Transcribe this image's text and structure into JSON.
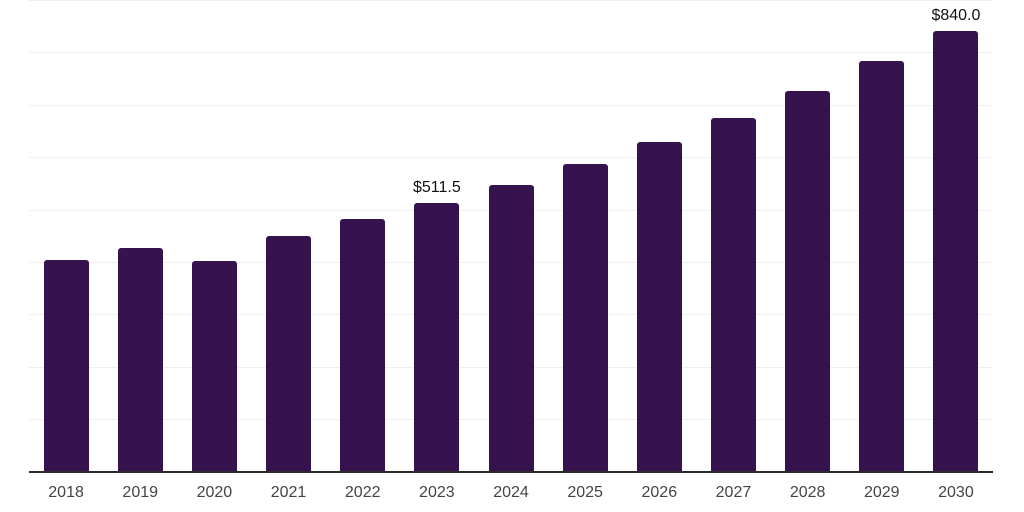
{
  "chart_data": {
    "type": "bar",
    "title": "",
    "xlabel": "",
    "ylabel": "",
    "categories": [
      "2018",
      "2019",
      "2020",
      "2021",
      "2022",
      "2023",
      "2024",
      "2025",
      "2026",
      "2027",
      "2028",
      "2029",
      "2030"
    ],
    "values": [
      403,
      425.5,
      401,
      449.5,
      481.5,
      511.5,
      546.5,
      586,
      627.5,
      673.5,
      725.5,
      783,
      840
    ],
    "data_labels": [
      null,
      null,
      null,
      null,
      null,
      "$511.5",
      null,
      null,
      null,
      null,
      null,
      null,
      "$840.0"
    ],
    "ylim": [
      0,
      900
    ],
    "gridline_step": 100,
    "grid": "horizontal",
    "legend": "none",
    "bar_color": "#36124E",
    "gridline_color": "#EFEFEF",
    "axis_line_color": "#2A2A2A",
    "tick_label_color": "#444444",
    "data_label_color": "#111111",
    "background_color": "#FFFFFF"
  }
}
